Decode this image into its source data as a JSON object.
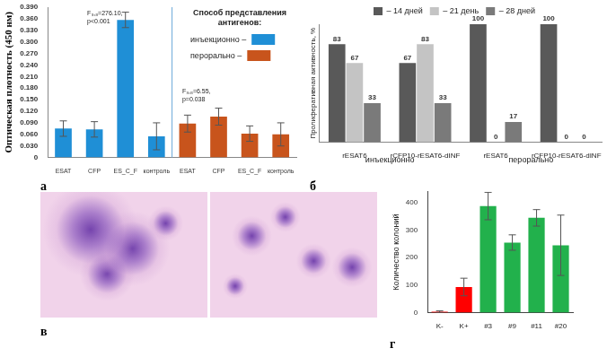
{
  "chart_data": [
    {
      "panel": "а",
      "type": "bar",
      "y_label": "Оптическая плотность (450 нм)",
      "categories": [
        "ESAT",
        "CFP",
        "ES_C_F",
        "контроль",
        "ESAT",
        "CFP",
        "ES_C_F",
        "контроль"
      ],
      "series": [
        {
          "name": "инъекционно –",
          "color": "#1f8fd6",
          "values": [
            0.075,
            0.073,
            0.357,
            0.055,
            null,
            null,
            null,
            null
          ],
          "errors": [
            0.02,
            0.02,
            0.02,
            0.035,
            null,
            null,
            null,
            null
          ]
        },
        {
          "name": "перорально –",
          "color": "#c8541c",
          "values": [
            null,
            null,
            null,
            null,
            0.088,
            0.106,
            0.062,
            0.06
          ],
          "errors": [
            null,
            null,
            null,
            null,
            0.022,
            0.022,
            0.02,
            0.03
          ]
        }
      ],
      "legend_title": "Способ представления антигенов:",
      "legend": "upper right",
      "annotations": [
        [
          "F₃,₈=276.10,",
          "p<0.001"
        ],
        [
          "F₃,₈=6.55,",
          "p=0.038"
        ]
      ],
      "ylim": [
        0,
        0.39
      ],
      "yticks": [
        0,
        {
          "value": 0.03,
          "label": "0.030"
        },
        {
          "value": 0.06,
          "label": "0.060"
        },
        {
          "value": 0.09,
          "label": "0.090"
        },
        {
          "value": 0.12,
          "label": "0.120"
        },
        {
          "value": 0.15,
          "label": "0.150"
        },
        {
          "value": 0.18,
          "label": "0.180"
        },
        {
          "value": 0.21,
          "label": "0.210"
        },
        {
          "value": 0.24,
          "label": "0.240"
        },
        {
          "value": 0.27,
          "label": "0.270"
        },
        {
          "value": 0.3,
          "label": "0.300"
        },
        {
          "value": 0.33,
          "label": "0.330"
        },
        {
          "value": 0.36,
          "label": "0.360"
        },
        {
          "value": 0.39,
          "label": "0.390"
        }
      ],
      "grid": false
    },
    {
      "panel": "б",
      "type": "bar",
      "y_label": "Пролиферативная активность, %",
      "categories": [
        "rESAT6",
        "rCFP10-rESAT6-dINF",
        "rESAT6",
        "rCFP10-rESAT6-dINF"
      ],
      "annotations": [
        "инъекционно",
        "перорально"
      ],
      "series": [
        {
          "name": "– 14 дней",
          "color": "#595959",
          "values": [
            83,
            67,
            100,
            100
          ]
        },
        {
          "name": "– 21 день",
          "color": "#c4c4c4",
          "values": [
            67,
            83,
            0,
            0
          ]
        },
        {
          "name": "– 28 дней",
          "color": "#7a7a7a",
          "values": [
            33,
            33,
            17,
            0
          ]
        }
      ],
      "legend": "top",
      "ylim": [
        0,
        100
      ],
      "tick_labels": "x",
      "data_labels": true,
      "grid": false
    },
    {
      "panel": "г",
      "type": "bar",
      "y_label": "Количество колоний",
      "categories": [
        "K-",
        "K+",
        "#3",
        "#9",
        "#11",
        "#20"
      ],
      "values": [
        3,
        93,
        388,
        255,
        345,
        245
      ],
      "errors": [
        3,
        32,
        50,
        28,
        30,
        110
      ],
      "colors": [
        "#ff0000",
        "#ff0000",
        "#22b14c",
        "#22b14c",
        "#22b14c",
        "#22b14c"
      ],
      "ylim": [
        0,
        440
      ],
      "yticks": [
        0,
        100,
        200,
        300,
        400
      ],
      "grid": false
    }
  ],
  "image_panel": {
    "panel": "в"
  }
}
